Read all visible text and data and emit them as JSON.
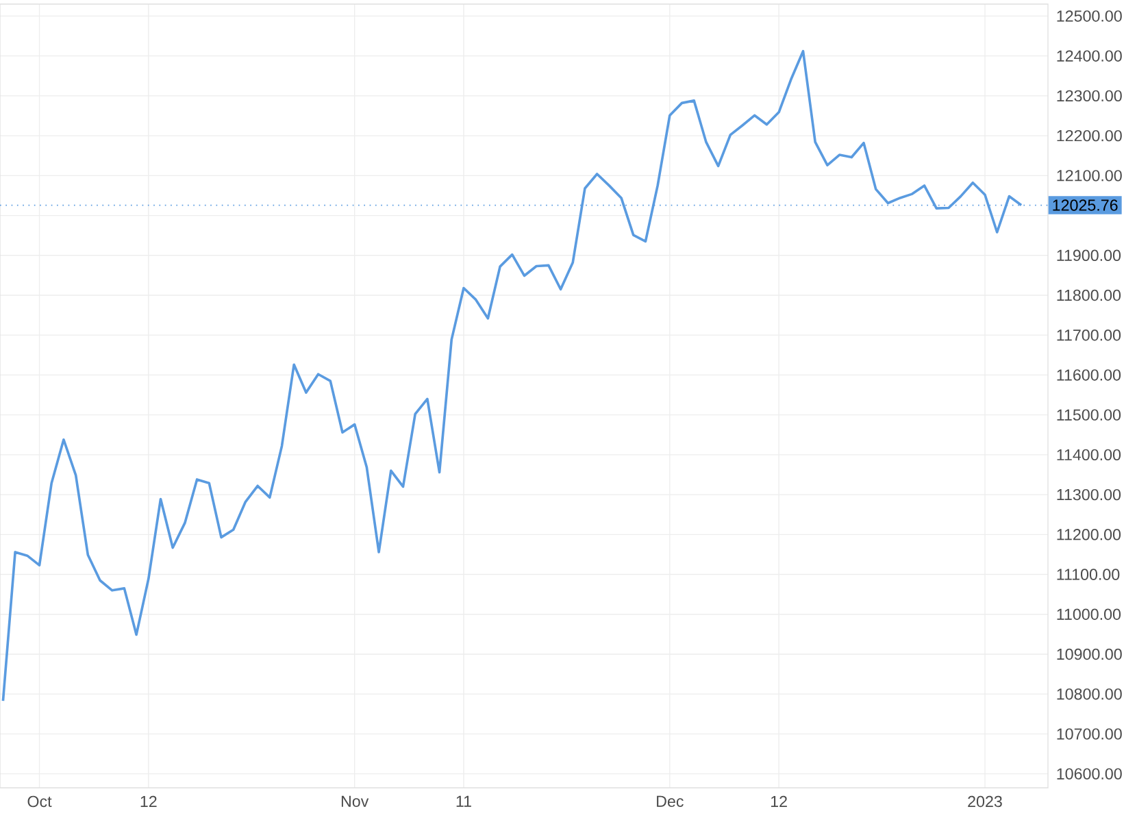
{
  "chart_data": {
    "type": "line",
    "categories": [
      null,
      null,
      null,
      "Oct",
      null,
      null,
      null,
      null,
      null,
      null,
      null,
      null,
      "12",
      null,
      null,
      null,
      null,
      null,
      null,
      null,
      null,
      null,
      null,
      null,
      null,
      null,
      null,
      null,
      null,
      "Nov",
      null,
      null,
      null,
      null,
      null,
      null,
      null,
      null,
      "11",
      null,
      null,
      null,
      null,
      null,
      null,
      null,
      null,
      null,
      null,
      null,
      null,
      null,
      null,
      null,
      null,
      "Dec",
      null,
      null,
      null,
      null,
      null,
      null,
      null,
      null,
      "12",
      null,
      null,
      null,
      null,
      null,
      null,
      null,
      null,
      null,
      null,
      null,
      null,
      null,
      null,
      null,
      null,
      "2023",
      null,
      null,
      null
    ],
    "series": [
      {
        "color": "#5a9be0",
        "values": [
          10783,
          11156,
          11147,
          11123,
          11329,
          11438,
          11349,
          11149,
          11085,
          11060,
          11065,
          10949,
          11089,
          11289,
          11167,
          11229,
          11338,
          11329,
          11193,
          11212,
          11282,
          11322,
          11293,
          11422,
          11626,
          11556,
          11602,
          11585,
          11456,
          11476,
          11369,
          11156,
          11360,
          11320,
          11502,
          11540,
          11356,
          11689,
          11818,
          11789,
          11742,
          11872,
          11902,
          11849,
          11873,
          11875,
          11815,
          11882,
          12068,
          12104,
          12075,
          12044,
          11951,
          11935,
          12075,
          12251,
          12282,
          12288,
          12184,
          12124,
          12202,
          12226,
          12251,
          12228,
          12259,
          12341,
          12412,
          12184,
          12126,
          12152,
          12146,
          12182,
          12066,
          12031,
          12044,
          12054,
          12075,
          12018,
          12019,
          12048,
          12082,
          12052,
          11958,
          12048,
          12026
        ]
      }
    ],
    "ylim": [
      10565,
      12530
    ],
    "yticks": [
      {
        "value": 10600,
        "label": "10600.00"
      },
      {
        "value": 10700,
        "label": "10700.00"
      },
      {
        "value": 10800,
        "label": "10800.00"
      },
      {
        "value": 10900,
        "label": "10900.00"
      },
      {
        "value": 11000,
        "label": "11000.00"
      },
      {
        "value": 11100,
        "label": "11100.00"
      },
      {
        "value": 11200,
        "label": "11200.00"
      },
      {
        "value": 11300,
        "label": "11300.00"
      },
      {
        "value": 11400,
        "label": "11400.00"
      },
      {
        "value": 11500,
        "label": "11500.00"
      },
      {
        "value": 11600,
        "label": "11600.00"
      },
      {
        "value": 11700,
        "label": "11700.00"
      },
      {
        "value": 11800,
        "label": "11800.00"
      },
      {
        "value": 11900,
        "label": "11900.00"
      },
      {
        "value": 12000,
        "label": null
      },
      {
        "value": 12100,
        "label": "12100.00"
      },
      {
        "value": 12200,
        "label": "12200.00"
      },
      {
        "value": 12300,
        "label": "12300.00"
      },
      {
        "value": 12400,
        "label": "12400.00"
      },
      {
        "value": 12500,
        "label": "12500.00"
      }
    ],
    "ref_lines": [
      {
        "axis": "y",
        "value": 12025.76,
        "label": "12025.76",
        "color": "#5a9be0",
        "line_style": "dotted"
      }
    ],
    "grid": true,
    "marker": "none",
    "line_style": "solid"
  }
}
